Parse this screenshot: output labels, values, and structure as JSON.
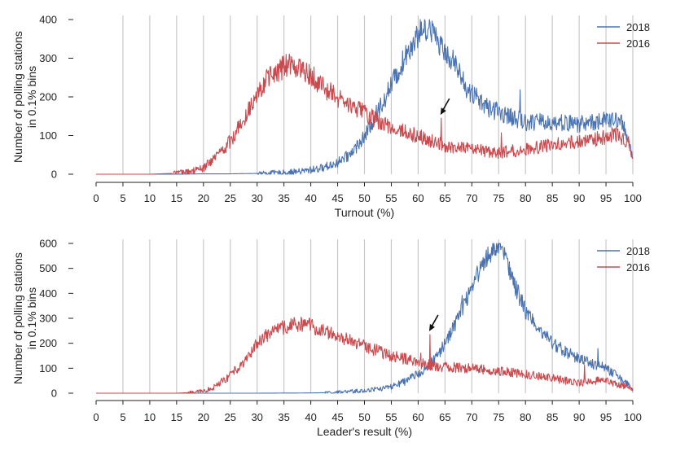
{
  "chart_data": [
    {
      "type": "line",
      "xlabel": "Turnout (%)",
      "ylabel_line1": "Number of polling stations",
      "ylabel_line2": "in 0.1% bins",
      "xlim": [
        0,
        100
      ],
      "ylim": [
        0,
        400
      ],
      "xticks": [
        "0",
        "5",
        "10",
        "15",
        "20",
        "25",
        "30",
        "35",
        "40",
        "45",
        "50",
        "55",
        "60",
        "65",
        "70",
        "75",
        "80",
        "85",
        "90",
        "95",
        "100"
      ],
      "yticks": [
        "0",
        "100",
        "200",
        "300",
        "400"
      ],
      "grid": "vertical lines every 5%",
      "legend_position": "top-right",
      "annotation": {
        "type": "arrow",
        "target_x": 64.3,
        "target_y": 145
      },
      "series": [
        {
          "name": "2018",
          "color": "#4a72b0",
          "x": [
            0,
            10,
            15,
            20,
            25,
            30,
            35,
            38,
            40,
            42,
            45,
            47,
            50,
            52,
            55,
            57,
            58,
            60,
            61,
            62,
            63,
            65,
            67,
            69,
            70,
            72,
            75,
            77,
            80,
            85,
            90,
            95,
            98,
            99,
            100
          ],
          "values": [
            0,
            0,
            0,
            1,
            1,
            2,
            4,
            7,
            11,
            16,
            30,
            48,
            95,
            150,
            230,
            285,
            320,
            360,
            378,
            382,
            355,
            325,
            280,
            220,
            210,
            180,
            160,
            150,
            135,
            135,
            130,
            140,
            135,
            100,
            40
          ]
        },
        {
          "name": "2016",
          "color": "#c94a4f",
          "x": [
            0,
            10,
            14,
            17,
            20,
            22,
            25,
            27,
            30,
            32,
            34,
            35,
            36,
            38,
            40,
            42,
            45,
            47,
            50,
            52,
            55,
            60,
            64,
            65,
            70,
            75,
            80,
            85,
            90,
            95,
            97,
            99,
            100
          ],
          "values": [
            0,
            0,
            2,
            5,
            15,
            40,
            85,
            130,
            215,
            245,
            268,
            278,
            283,
            275,
            258,
            230,
            195,
            180,
            162,
            140,
            120,
            100,
            78,
            70,
            65,
            55,
            65,
            75,
            85,
            95,
            105,
            85,
            30
          ]
        }
      ]
    },
    {
      "type": "line",
      "xlabel": "Leader's result (%)",
      "ylabel_line1": "Number of polling stations",
      "ylabel_line2": "in 0.1% bins",
      "xlim": [
        0,
        100
      ],
      "ylim": [
        0,
        600
      ],
      "xticks": [
        "0",
        "5",
        "10",
        "15",
        "20",
        "25",
        "30",
        "35",
        "40",
        "45",
        "50",
        "55",
        "60",
        "65",
        "70",
        "75",
        "80",
        "85",
        "90",
        "95",
        "100"
      ],
      "yticks": [
        "0",
        "100",
        "200",
        "300",
        "400",
        "500",
        "600"
      ],
      "grid": "vertical lines every 5%",
      "legend_position": "top-right",
      "annotation": {
        "type": "arrow",
        "target_x": 62.2,
        "target_y": 235
      },
      "series": [
        {
          "name": "2018",
          "color": "#4a72b0",
          "x": [
            0,
            20,
            30,
            40,
            45,
            50,
            55,
            58,
            60,
            62,
            64,
            66,
            68,
            70,
            72,
            74,
            75,
            76,
            78,
            80,
            83,
            85,
            88,
            90,
            93,
            95,
            97,
            99,
            100
          ],
          "values": [
            0,
            0,
            0,
            1,
            3,
            10,
            25,
            50,
            80,
            110,
            160,
            240,
            330,
            430,
            520,
            580,
            600,
            560,
            430,
            330,
            250,
            200,
            160,
            140,
            115,
            100,
            70,
            35,
            10
          ]
        },
        {
          "name": "2016",
          "color": "#c94a4f",
          "x": [
            0,
            15,
            18,
            20,
            22,
            25,
            28,
            30,
            32,
            35,
            38,
            40,
            42,
            45,
            48,
            50,
            53,
            55,
            58,
            60,
            63,
            65,
            70,
            75,
            80,
            85,
            90,
            95,
            97,
            100
          ],
          "values": [
            0,
            0,
            3,
            8,
            25,
            70,
            140,
            200,
            235,
            265,
            278,
            270,
            255,
            230,
            205,
            190,
            165,
            150,
            135,
            120,
            110,
            105,
            100,
            90,
            75,
            60,
            40,
            55,
            35,
            20
          ]
        }
      ]
    }
  ]
}
